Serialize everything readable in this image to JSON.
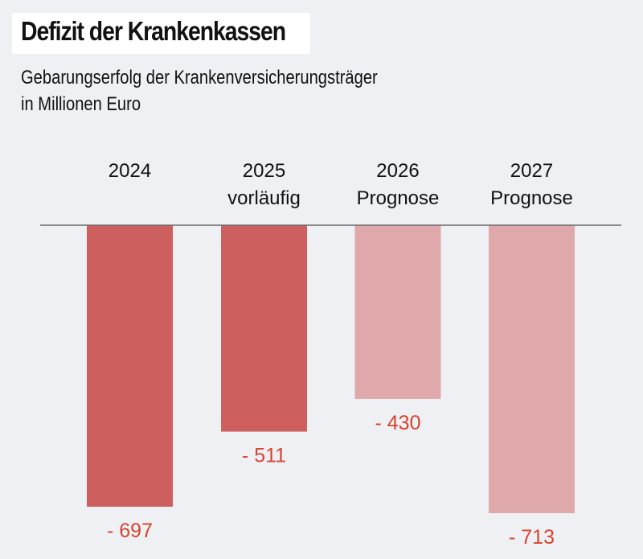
{
  "header": {
    "title": "Defizit der Krankenkassen",
    "subtitle_line1": "Gebarungserfolg der Krankenversicherungsträger",
    "subtitle_line2": "in Millionen Euro"
  },
  "colors": {
    "actual": "#cd5f5f",
    "forecast": "#dfa8ab",
    "label": "#d9432d",
    "baseline": "#6b6b6b",
    "background": "#eff0f4"
  },
  "chart_data": {
    "type": "bar",
    "title": "Defizit der Krankenkassen",
    "subtitle": "Gebarungserfolg der Krankenversicherungsträger in Millionen Euro",
    "xlabel": "",
    "ylabel": "Millionen Euro",
    "categories": [
      "2024",
      "2025 vorläufig",
      "2026 Prognose",
      "2027 Prognose"
    ],
    "category_lines": [
      [
        "2024"
      ],
      [
        "2025",
        "vorläufig"
      ],
      [
        "2026",
        "Prognose"
      ],
      [
        "2027",
        "Prognose"
      ]
    ],
    "values": [
      -697,
      -511,
      -430,
      -713
    ],
    "value_labels": [
      "- 697",
      "- 511",
      "- 430",
      "- 713"
    ],
    "status": [
      "actual",
      "actual",
      "forecast",
      "forecast"
    ],
    "ylim": [
      -720,
      0
    ],
    "grid": false,
    "legend": "none"
  }
}
